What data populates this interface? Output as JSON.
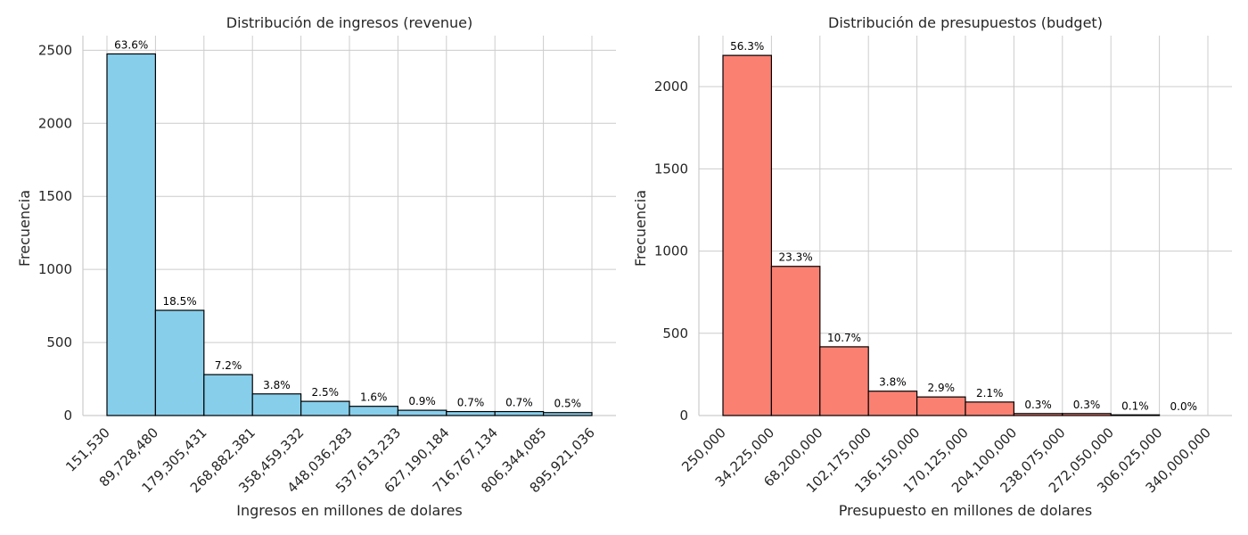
{
  "chart_data": [
    {
      "type": "bar",
      "title": "Distribución de ingresos (revenue)",
      "xlabel": "Ingresos en millones de dolares",
      "ylabel": "Frecuencia",
      "color": "#87CEEB",
      "bin_edges": [
        "151,530",
        "89,728,480",
        "179,305,431",
        "268,882,381",
        "358,459,332",
        "448,036,283",
        "537,613,233",
        "627,190,184",
        "716,767,134",
        "806,344,085",
        "895,921,036"
      ],
      "values": [
        2475,
        720,
        280,
        148,
        97,
        63,
        36,
        27,
        27,
        20
      ],
      "percent_labels": [
        "63.6%",
        "18.5%",
        "7.2%",
        "3.8%",
        "2.5%",
        "1.6%",
        "0.9%",
        "0.7%",
        "0.7%",
        "0.5%"
      ],
      "yticks": [
        0,
        500,
        1000,
        1500,
        2000,
        2500
      ],
      "ylim": [
        0,
        2600
      ],
      "grid": true
    },
    {
      "type": "bar",
      "title": "Distribución de presupuestos (budget)",
      "xlabel": "Presupuesto en millones de dolares",
      "ylabel": "Frecuencia",
      "color": "#FA8072",
      "bin_edges": [
        "250,000",
        "34,225,000",
        "68,200,000",
        "102,175,000",
        "136,150,000",
        "170,125,000",
        "204,100,000",
        "238,075,000",
        "272,050,000",
        "306,025,000",
        "340,000,000"
      ],
      "values": [
        2190,
        907,
        418,
        148,
        113,
        82,
        12,
        12,
        4,
        0
      ],
      "percent_labels": [
        "56.3%",
        "23.3%",
        "10.7%",
        "3.8%",
        "2.9%",
        "2.1%",
        "0.3%",
        "0.3%",
        "0.1%",
        "0.0%"
      ],
      "yticks": [
        0,
        500,
        1000,
        1500,
        2000
      ],
      "ylim": [
        0,
        2310
      ],
      "grid": true
    }
  ]
}
